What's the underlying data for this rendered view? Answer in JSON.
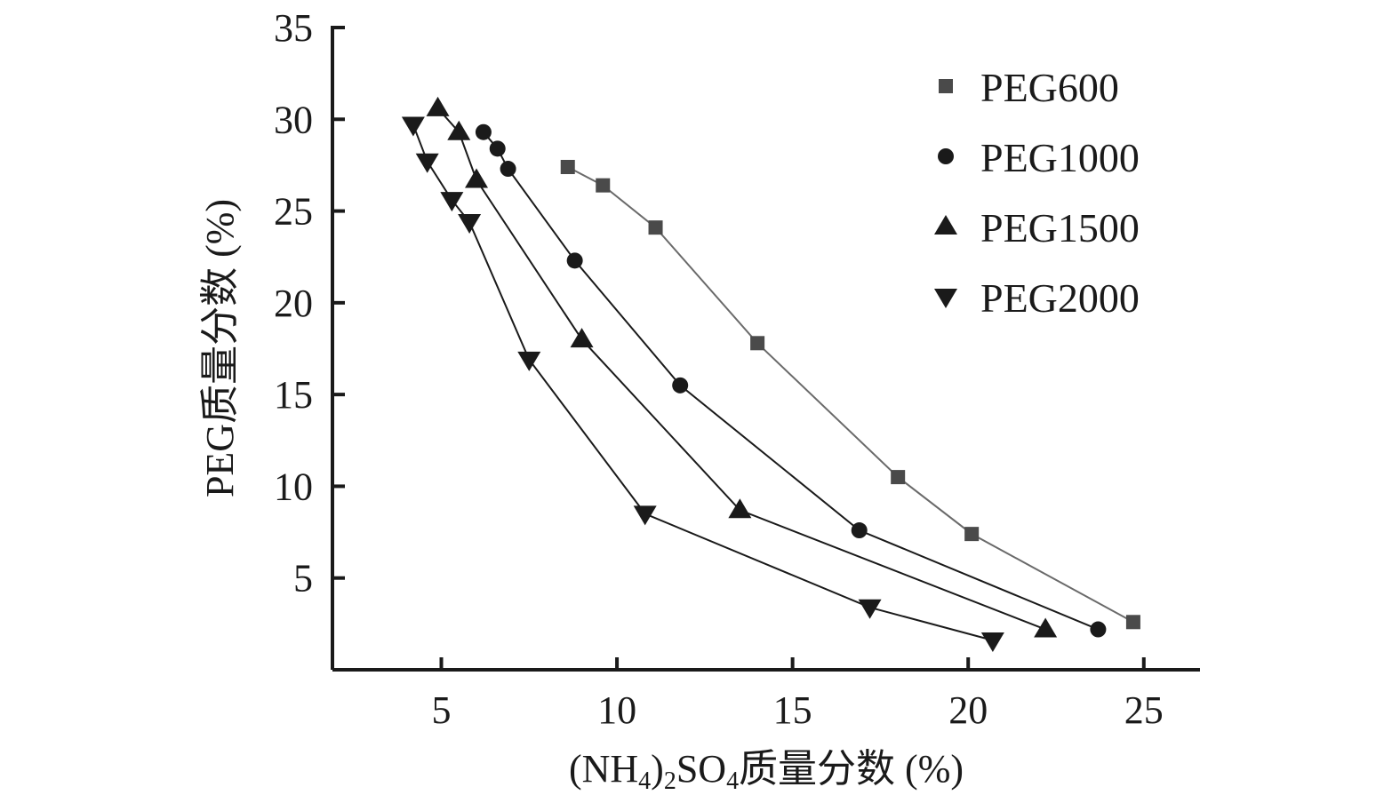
{
  "chart_data": {
    "type": "line",
    "title": "",
    "xlabel": {
      "prefix": "(NH",
      "sub1": "4",
      "mid": ")",
      "sub2": "2",
      "mid2": "SO",
      "sub3": "4",
      "suffix": "质量分数 (%)"
    },
    "xlabel_text": "(NH4)2SO4质量分数 (%)",
    "ylabel": "PEG质量分数 (%)",
    "xlim": [
      1.9,
      26.6
    ],
    "ylim": [
      0,
      35
    ],
    "xticks": [
      5,
      10,
      15,
      20,
      25
    ],
    "yticks": [
      5,
      10,
      15,
      20,
      25,
      30,
      35
    ],
    "xtick_labels": [
      "5",
      "10",
      "15",
      "20",
      "25"
    ],
    "ytick_labels": [
      "5",
      "10",
      "15",
      "20",
      "25",
      "30",
      "35"
    ],
    "grid": false,
    "legend_position": "top-right",
    "series": [
      {
        "name": "PEG600",
        "marker": "square",
        "color": "#4a4a4a",
        "line_color": "#6a6a6a",
        "x": [
          8.6,
          9.6,
          11.1,
          14.0,
          18.0,
          20.1,
          24.7
        ],
        "y": [
          27.4,
          26.4,
          24.1,
          17.8,
          10.5,
          7.4,
          2.6
        ]
      },
      {
        "name": "PEG1000",
        "marker": "circle",
        "color": "#1a1a1a",
        "line_color": "#1a1a1a",
        "x": [
          6.2,
          6.6,
          6.9,
          8.8,
          11.8,
          16.9,
          23.7
        ],
        "y": [
          29.3,
          28.4,
          27.3,
          22.3,
          15.5,
          7.6,
          2.2
        ]
      },
      {
        "name": "PEG1500",
        "marker": "triangle-up",
        "color": "#1a1a1a",
        "line_color": "#1a1a1a",
        "x": [
          4.9,
          5.5,
          6.0,
          9.0,
          13.5,
          22.2
        ],
        "y": [
          30.6,
          29.3,
          26.7,
          18.0,
          8.7,
          2.2
        ]
      },
      {
        "name": "PEG2000",
        "marker": "triangle-down",
        "color": "#1a1a1a",
        "line_color": "#1a1a1a",
        "x": [
          4.2,
          4.6,
          5.3,
          5.8,
          7.5,
          10.8,
          17.2,
          20.7
        ],
        "y": [
          29.7,
          27.7,
          25.6,
          24.4,
          16.9,
          8.5,
          3.4,
          1.6
        ]
      }
    ]
  }
}
